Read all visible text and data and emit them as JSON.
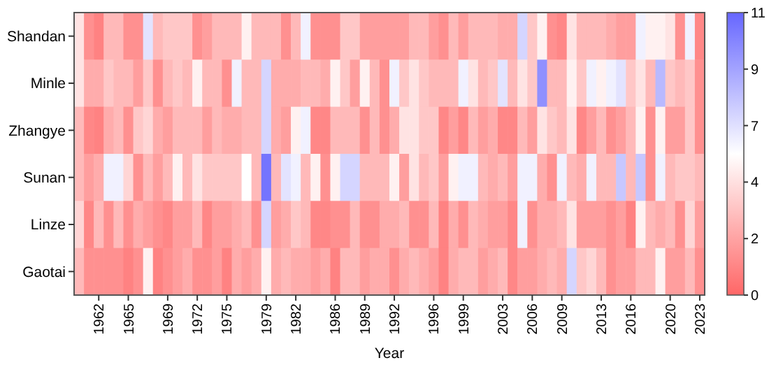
{
  "chart_data": {
    "type": "heatmap",
    "xlabel": "Year",
    "categories": [
      null,
      null,
      "1962",
      null,
      null,
      "1965",
      null,
      null,
      null,
      "1969",
      null,
      null,
      "1972",
      null,
      null,
      "1975",
      null,
      null,
      null,
      "1979",
      null,
      null,
      "1982",
      null,
      null,
      null,
      "1986",
      null,
      null,
      "1989",
      null,
      null,
      "1992",
      null,
      null,
      null,
      "1996",
      null,
      null,
      "1999",
      null,
      null,
      null,
      "2003",
      null,
      null,
      "2006",
      null,
      null,
      "2009",
      null,
      null,
      null,
      "2013",
      null,
      null,
      "2016",
      null,
      null,
      null,
      "2020",
      null,
      null,
      "2023"
    ],
    "y_categories": [
      "Shandan",
      "Minle",
      "Zhangye",
      "Sunan",
      "Linze",
      "Gaotai"
    ],
    "cells": [
      [
        4.5,
        1.5,
        1,
        3,
        3,
        1.5,
        1.5,
        6.5,
        3,
        3.5,
        3.5,
        3.5,
        1.5,
        2,
        3,
        3,
        3,
        5,
        3,
        3,
        3,
        1.5,
        3,
        6,
        1.5,
        1.5,
        1.5,
        3.5,
        3.5,
        2,
        2,
        2,
        2,
        2,
        3,
        3,
        2,
        1.5,
        3,
        2,
        3,
        3,
        3,
        2.5,
        2.5,
        7,
        3.5,
        5,
        1.5,
        1.2,
        4.5,
        3,
        3,
        3,
        2.5,
        2,
        2,
        6,
        5,
        5,
        4.5,
        1.5,
        6,
        1.2
      ],
      [
        4.5,
        2.5,
        2.5,
        3.5,
        3,
        3,
        2,
        3.5,
        1.5,
        3,
        3.5,
        3,
        5,
        3,
        3,
        1.5,
        6,
        3,
        3,
        7,
        2.5,
        2.5,
        2.5,
        3,
        3,
        2.5,
        5,
        3.5,
        2,
        5,
        3,
        1.5,
        6,
        3.5,
        4.5,
        3.5,
        3,
        3,
        3,
        6,
        4.5,
        3,
        3.5,
        6.5,
        3,
        4.5,
        3.5,
        9.5,
        3,
        3,
        5,
        3.5,
        6,
        5,
        6,
        6.5,
        3.5,
        4.5,
        3,
        8,
        3.5,
        3,
        3.5,
        1.5
      ],
      [
        3,
        1.2,
        1,
        2.5,
        3,
        1.5,
        3.5,
        4,
        2.5,
        2,
        3,
        3,
        3,
        2,
        3,
        2.5,
        2.5,
        3,
        3,
        7,
        2.5,
        2,
        5,
        6,
        1.2,
        1.2,
        3,
        3,
        3,
        1.5,
        3,
        1.5,
        2.5,
        4.5,
        4.5,
        3.5,
        3.5,
        1.2,
        2,
        1.2,
        3,
        2,
        2.5,
        1.2,
        1.2,
        3,
        2,
        4.5,
        3.5,
        3,
        4.5,
        1.2,
        2,
        3,
        1.5,
        2,
        3,
        5,
        1.5,
        5,
        2,
        2,
        3.5,
        1.5
      ],
      [
        3,
        2,
        2.5,
        6,
        6,
        4,
        1.5,
        3,
        2,
        3,
        5,
        3,
        4.5,
        3.5,
        3.5,
        3.5,
        3.5,
        5.5,
        3,
        10.5,
        3,
        6.5,
        6,
        3,
        5,
        1.5,
        5,
        7,
        7,
        3,
        3,
        3,
        5,
        2,
        4.5,
        3,
        3.5,
        2,
        5,
        6,
        6,
        3,
        2.5,
        3,
        2,
        6,
        6,
        2.5,
        1.5,
        6,
        3,
        2.5,
        6,
        3,
        3,
        7.5,
        3,
        7.5,
        1.5,
        6,
        3,
        3.5,
        3.5,
        3
      ],
      [
        4,
        1.2,
        3,
        1.5,
        3,
        1.5,
        2.5,
        2,
        1.5,
        1.2,
        2,
        2,
        3,
        1.2,
        2,
        2,
        2.5,
        3,
        1.5,
        7,
        2,
        2.5,
        3.5,
        3,
        1.2,
        1.2,
        1.5,
        1.5,
        3,
        1.5,
        1.5,
        2.5,
        2.5,
        3,
        1.5,
        1.5,
        3,
        1,
        2.5,
        1.5,
        3,
        2.5,
        2,
        2,
        1.2,
        6,
        1.5,
        2.5,
        2.5,
        3,
        4.5,
        2,
        2,
        2,
        1.5,
        2,
        1,
        5,
        3,
        2.5,
        3,
        1.5,
        4,
        2
      ],
      [
        3,
        1.5,
        1.5,
        1.5,
        1.5,
        1,
        1.5,
        5,
        1,
        1.5,
        2,
        2.5,
        1.5,
        1.5,
        2,
        1,
        2.5,
        2,
        2.5,
        5,
        2.5,
        3,
        2.5,
        2.5,
        2,
        2.5,
        1,
        3,
        3,
        2,
        2.5,
        2.5,
        1.5,
        2.5,
        3,
        2.5,
        2,
        1,
        2.5,
        3,
        3,
        2,
        2.5,
        3,
        1.2,
        2,
        2,
        2.5,
        3,
        2.5,
        7,
        3.5,
        4,
        3,
        1.5,
        2,
        2,
        3,
        3,
        5,
        2,
        2,
        3,
        1.5
      ]
    ],
    "clim": [
      0,
      11
    ],
    "cticks": [
      0,
      {
        "value": 2.2,
        "label": "2"
      },
      {
        "value": 4.4,
        "label": "4"
      },
      {
        "value": 6.6,
        "label": "7"
      },
      {
        "value": 8.8,
        "label": "9"
      },
      11
    ]
  }
}
